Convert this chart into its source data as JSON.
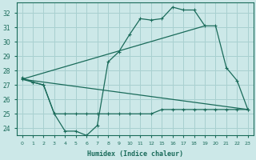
{
  "background_color": "#cce8e8",
  "grid_color": "#a8d0d0",
  "line_color": "#1a6b5a",
  "xlabel": "Humidex (Indice chaleur)",
  "ylim": [
    23.5,
    32.7
  ],
  "xlim": [
    -0.5,
    23.5
  ],
  "yticks": [
    24,
    25,
    26,
    27,
    28,
    29,
    30,
    31,
    32
  ],
  "xtick_positions": [
    0,
    1,
    2,
    3,
    4,
    5,
    6,
    7,
    8,
    9,
    10,
    11,
    12,
    15,
    16,
    17,
    18,
    19,
    20,
    21,
    22,
    23
  ],
  "xtick_labels": [
    "0",
    "1",
    "2",
    "3",
    "4",
    "5",
    "6",
    "7",
    "8",
    "9",
    "10",
    "11",
    "12",
    "15",
    "16",
    "17",
    "18",
    "19",
    "20",
    "21",
    "22",
    "23"
  ],
  "series1_x": [
    0,
    1,
    2,
    3,
    4,
    5,
    6,
    7,
    8,
    9,
    10,
    11,
    12,
    15,
    16,
    17,
    18,
    19,
    20,
    21,
    22,
    23
  ],
  "series1_y": [
    27.5,
    27.2,
    27.0,
    25.0,
    23.8,
    23.8,
    23.5,
    24.2,
    28.6,
    29.3,
    30.5,
    31.6,
    31.5,
    31.6,
    32.4,
    32.2,
    32.2,
    31.1,
    31.1,
    28.2,
    27.3,
    25.3
  ],
  "series2_x": [
    0,
    1,
    2,
    3,
    4,
    5,
    6,
    7,
    8,
    9,
    10,
    11,
    12,
    15,
    16,
    17,
    18,
    19,
    20,
    21,
    22,
    23
  ],
  "series2_y": [
    27.4,
    27.2,
    27.0,
    25.0,
    25.0,
    25.0,
    25.0,
    25.0,
    25.0,
    25.0,
    25.0,
    25.0,
    25.0,
    25.3,
    25.3,
    25.3,
    25.3,
    25.3,
    25.3,
    25.3,
    25.3,
    25.3
  ],
  "series3_x": [
    0,
    23
  ],
  "series3_y": [
    27.4,
    25.3
  ],
  "series4_x": [
    0,
    19
  ],
  "series4_y": [
    27.4,
    31.1
  ]
}
